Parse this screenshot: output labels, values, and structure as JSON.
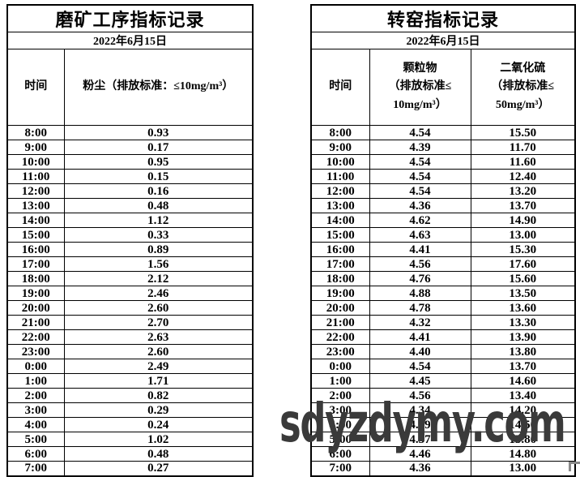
{
  "watermark": {
    "text": "sdyzdymy.com",
    "color": "#3a3a3a"
  },
  "left_table": {
    "title": "磨矿工序指标记录",
    "date": "2022年6月15日",
    "columns": [
      "时间",
      "粉尘（排放标准：≤10mg/m³）"
    ],
    "rows": [
      [
        "8:00",
        "0.93"
      ],
      [
        "9:00",
        "0.17"
      ],
      [
        "10:00",
        "0.95"
      ],
      [
        "11:00",
        "0.15"
      ],
      [
        "12:00",
        "0.16"
      ],
      [
        "13:00",
        "0.48"
      ],
      [
        "14:00",
        "1.12"
      ],
      [
        "15:00",
        "0.33"
      ],
      [
        "16:00",
        "0.89"
      ],
      [
        "17:00",
        "1.56"
      ],
      [
        "18:00",
        "2.12"
      ],
      [
        "19:00",
        "2.46"
      ],
      [
        "20:00",
        "2.60"
      ],
      [
        "21:00",
        "2.70"
      ],
      [
        "22:00",
        "2.63"
      ],
      [
        "23:00",
        "2.60"
      ],
      [
        "0:00",
        "2.49"
      ],
      [
        "1:00",
        "1.71"
      ],
      [
        "2:00",
        "0.82"
      ],
      [
        "3:00",
        "0.29"
      ],
      [
        "4:00",
        "0.24"
      ],
      [
        "5:00",
        "1.02"
      ],
      [
        "6:00",
        "0.48"
      ],
      [
        "7:00",
        "0.27"
      ]
    ]
  },
  "right_table": {
    "title": "转窑指标记录",
    "date": "2022年6月15日",
    "columns": [
      "时间",
      "颗粒物\n（排放标准≤\n10mg/m³）",
      "二氧化硫\n（排放标准≤\n50mg/m³）"
    ],
    "rows": [
      [
        "8:00",
        "4.54",
        "15.50"
      ],
      [
        "9:00",
        "4.39",
        "11.70"
      ],
      [
        "10:00",
        "4.54",
        "11.60"
      ],
      [
        "11:00",
        "4.54",
        "12.40"
      ],
      [
        "12:00",
        "4.54",
        "13.20"
      ],
      [
        "13:00",
        "4.36",
        "13.70"
      ],
      [
        "14:00",
        "4.62",
        "14.90"
      ],
      [
        "15:00",
        "4.63",
        "13.00"
      ],
      [
        "16:00",
        "4.41",
        "15.30"
      ],
      [
        "17:00",
        "4.56",
        "17.60"
      ],
      [
        "18:00",
        "4.76",
        "15.60"
      ],
      [
        "19:00",
        "4.88",
        "13.50"
      ],
      [
        "20:00",
        "4.78",
        "13.60"
      ],
      [
        "21:00",
        "4.32",
        "13.30"
      ],
      [
        "22:00",
        "4.41",
        "13.90"
      ],
      [
        "23:00",
        "4.40",
        "13.80"
      ],
      [
        "0:00",
        "4.54",
        "13.70"
      ],
      [
        "1:00",
        "4.45",
        "14.60"
      ],
      [
        "2:00",
        "4.56",
        "13.40"
      ],
      [
        "3:00",
        "4.34",
        "14.20"
      ],
      [
        "4:00",
        "4.39",
        "14.50"
      ],
      [
        "5:00",
        "4.37",
        "15.80"
      ],
      [
        "6:00",
        "4.46",
        "14.80"
      ],
      [
        "7:00",
        "4.36",
        "13.00"
      ]
    ]
  }
}
